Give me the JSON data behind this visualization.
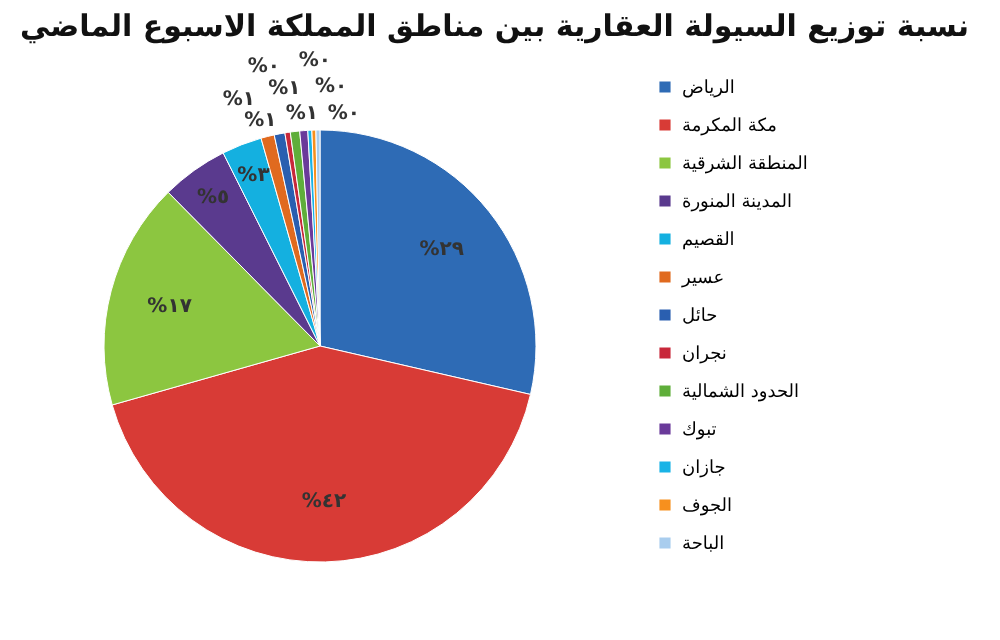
{
  "chart_data": {
    "type": "pie",
    "title": "نسبة توزيع السيولة العقارية بين مناطق المملكة الاسبوع الماضي",
    "categories": [
      "الرياض",
      "مكة المكرمة",
      "المنطقة الشرقية",
      "المدينة المنورة",
      "القصيم",
      "عسير",
      "حائل",
      "نجران",
      "الحدود الشمالية",
      "تبوك",
      "جازان",
      "الجوف",
      "الباحة"
    ],
    "values": [
      28.6,
      42,
      17,
      5,
      3,
      1,
      0.8,
      0.4,
      0.7,
      0.6,
      0.3,
      0.3,
      0.3
    ],
    "colors": [
      "#2e6bb5",
      "#d83b36",
      "#8cc640",
      "#5a3a8e",
      "#14b0e0",
      "#e06a1f",
      "#2a5fb0",
      "#c8283a",
      "#5fae3a",
      "#6a3a9a",
      "#19b3e6",
      "#f7901e",
      "#a9cdee"
    ],
    "value_labels": [
      "%٢٩",
      "%٤٢",
      "%١٧",
      "%٥",
      "%٣",
      "%١",
      "%١",
      "%٠",
      "%١",
      "%١",
      "%٠",
      "%٠",
      "%٠"
    ],
    "legend": "right"
  }
}
